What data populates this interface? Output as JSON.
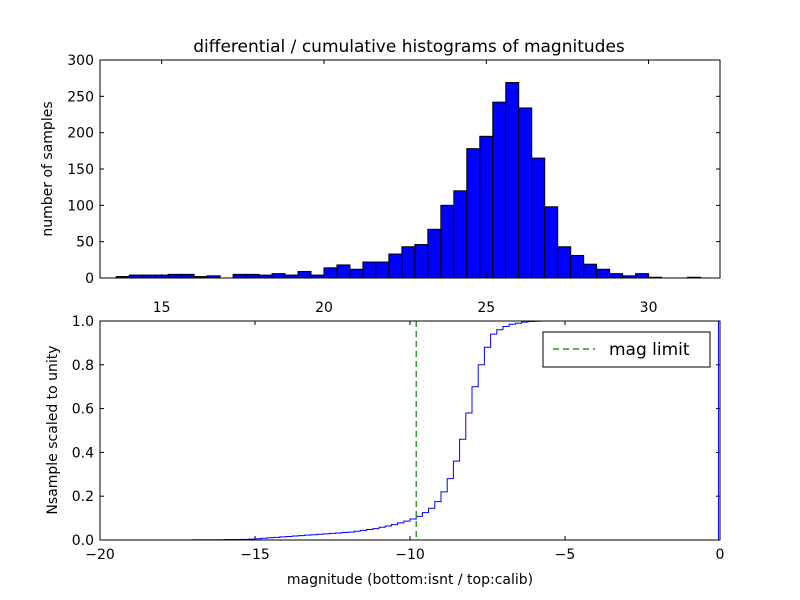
{
  "chart_data": [
    {
      "type": "bar",
      "title": "differential / cumulative histograms of magnitudes",
      "ylabel": "number of samples",
      "xlabel": "",
      "xlim": [
        13.1,
        32.2
      ],
      "ylim": [
        0,
        300
      ],
      "xticks": [
        15,
        20,
        25,
        30
      ],
      "yticks": [
        0,
        50,
        100,
        150,
        200,
        250,
        300
      ],
      "x_tick_position": "bottom, labels below axis",
      "bar_color": "#0000ff",
      "edge_color": "#000000",
      "bin_width": 0.4,
      "bin_start": 13.2,
      "values": [
        0,
        2,
        4,
        4,
        4,
        5,
        5,
        2,
        3,
        0,
        5,
        5,
        4,
        6,
        4,
        9,
        4,
        14,
        18,
        12,
        22,
        22,
        33,
        43,
        46,
        67,
        100,
        120,
        178,
        195,
        242,
        269,
        234,
        165,
        98,
        43,
        31,
        19,
        12,
        6,
        3,
        6,
        1,
        0,
        0,
        1,
        0,
        0
      ]
    },
    {
      "type": "line",
      "subtype": "cumulative step",
      "xlabel": "magnitude (bottom:isnt / top:calib)",
      "ylabel": "Nsample scaled to unity",
      "title": "",
      "xlim": [
        -20,
        0
      ],
      "ylim": [
        0,
        1
      ],
      "xticks": [
        -20,
        -15,
        -10,
        -5,
        0
      ],
      "yticks": [
        0.0,
        0.2,
        0.4,
        0.6,
        0.8,
        1.0
      ],
      "ytick_labels": [
        "0.0",
        "0.2",
        "0.4",
        "0.6",
        "0.8",
        "1.0"
      ],
      "line_color": "#0000ff",
      "series": [
        {
          "x": [
            -20.0,
            -17.0,
            -16.0,
            -15.5,
            -15.2,
            -15.0,
            -14.8,
            -14.6,
            -14.4,
            -14.2,
            -14.0,
            -13.8,
            -13.6,
            -13.4,
            -13.2,
            -13.0,
            -12.8,
            -12.6,
            -12.4,
            -12.2,
            -12.0,
            -11.8,
            -11.6,
            -11.4,
            -11.2,
            -11.0,
            -10.8,
            -10.6,
            -10.4,
            -10.2,
            -10.0,
            -9.8,
            -9.6,
            -9.4,
            -9.2,
            -9.0,
            -8.8,
            -8.6,
            -8.4,
            -8.2,
            -8.0,
            -7.8,
            -7.6,
            -7.4,
            -7.2,
            -7.0,
            -6.8,
            -6.6,
            -6.4,
            -6.2,
            -6.0,
            -5.8,
            -5.6,
            -5.4,
            -0.05
          ],
          "y": [
            0.0,
            0.001,
            0.002,
            0.003,
            0.004,
            0.006,
            0.008,
            0.01,
            0.012,
            0.014,
            0.016,
            0.018,
            0.02,
            0.022,
            0.024,
            0.026,
            0.028,
            0.03,
            0.032,
            0.034,
            0.036,
            0.04,
            0.044,
            0.048,
            0.052,
            0.058,
            0.064,
            0.07,
            0.078,
            0.086,
            0.096,
            0.108,
            0.125,
            0.145,
            0.175,
            0.22,
            0.28,
            0.36,
            0.46,
            0.58,
            0.7,
            0.8,
            0.88,
            0.94,
            0.96,
            0.975,
            0.985,
            0.99,
            0.995,
            0.998,
            0.999,
            1.0,
            1.0,
            1.0,
            1.0
          ]
        }
      ],
      "vline": {
        "x": -9.8,
        "color": "#008000",
        "style": "dashed",
        "label": "mag limit"
      },
      "legend": {
        "placement": "top-right",
        "entries": [
          "mag limit"
        ]
      }
    }
  ]
}
